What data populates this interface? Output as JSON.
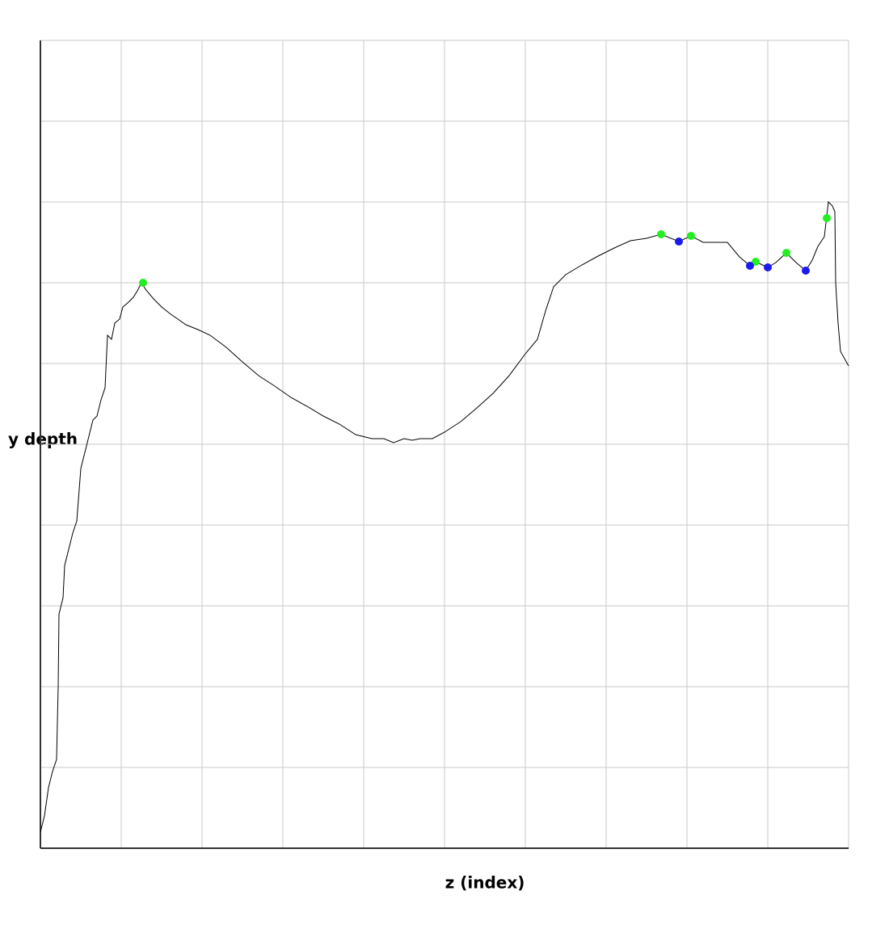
{
  "chart_data": {
    "type": "line",
    "x_label": "z (index)",
    "y_label": "y depth",
    "xlim": [
      0,
      1000
    ],
    "ylim": [
      0,
      1000
    ],
    "xticks": [
      0,
      100,
      200,
      300,
      400,
      500,
      600,
      700,
      800,
      900,
      1000
    ],
    "yticks": [
      0,
      100,
      200,
      300,
      400,
      500,
      600,
      700,
      800,
      900,
      1000
    ],
    "grid": true,
    "series": [
      {
        "color": "#000000",
        "style": "line",
        "x": [
          0,
          5,
          10,
          15,
          20,
          22,
          23,
          28,
          30,
          35,
          40,
          45,
          50,
          55,
          60,
          65,
          70,
          75,
          80,
          83,
          88,
          92,
          98,
          102,
          108,
          115,
          120,
          125,
          130,
          140,
          150,
          160,
          170,
          180,
          195,
          210,
          230,
          250,
          270,
          290,
          310,
          330,
          350,
          370,
          390,
          410,
          425,
          437,
          450,
          460,
          470,
          485,
          500,
          520,
          540,
          560,
          580,
          600,
          615,
          625,
          635,
          650,
          670,
          690,
          710,
          730,
          750,
          768,
          790,
          805,
          820,
          850,
          865,
          878,
          885,
          900,
          910,
          923,
          935,
          947,
          955,
          962,
          970,
          975,
          980,
          983,
          984,
          987,
          990,
          1000
        ],
        "values": [
          20,
          40,
          75,
          95,
          110,
          200,
          290,
          310,
          350,
          370,
          390,
          405,
          470,
          490,
          510,
          530,
          535,
          555,
          570,
          635,
          630,
          650,
          655,
          670,
          675,
          682,
          690,
          700,
          692,
          680,
          670,
          662,
          655,
          648,
          642,
          635,
          620,
          602,
          585,
          572,
          558,
          547,
          535,
          525,
          512,
          507,
          507,
          502,
          507,
          505,
          507,
          507,
          515,
          528,
          545,
          563,
          585,
          612,
          630,
          665,
          695,
          710,
          722,
          733,
          743,
          752,
          755,
          760,
          751,
          758,
          750,
          750,
          732,
          721,
          726,
          719,
          725,
          737,
          725,
          715,
          728,
          745,
          757,
          800,
          795,
          788,
          700,
          650,
          615,
          597
        ]
      },
      {
        "color": "#22ee22",
        "style": "marker",
        "x": [
          127,
          768,
          805,
          885,
          923,
          973
        ],
        "values": [
          700,
          760,
          758,
          726,
          737,
          780
        ]
      },
      {
        "color": "#1a1aee",
        "style": "marker",
        "x": [
          790,
          878,
          900,
          947
        ],
        "values": [
          751,
          721,
          719,
          715
        ]
      }
    ]
  }
}
